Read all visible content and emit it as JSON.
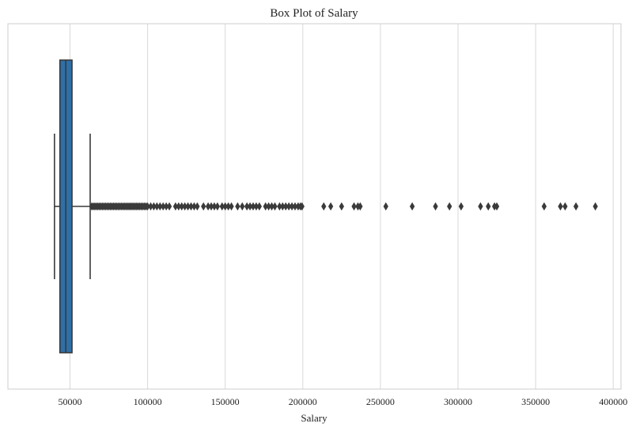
{
  "chart_data": {
    "type": "box",
    "orientation": "horizontal",
    "title": "Box Plot of Salary",
    "xlabel": "Salary",
    "ylabel": "",
    "xlim": [
      10000,
      405000
    ],
    "xticks": [
      50000,
      100000,
      150000,
      200000,
      250000,
      300000,
      350000,
      400000
    ],
    "xtick_labels": [
      "50000",
      "100000",
      "150000",
      "200000",
      "250000",
      "300000",
      "350000",
      "400000"
    ],
    "grid": true,
    "box_color": "#2e6fa7",
    "line_color": "#3a3a3a",
    "stats": {
      "whisker_low": 40000,
      "q1": 43500,
      "median": 47300,
      "q3": 51300,
      "whisker_high": 63000
    },
    "outliers": [
      64000,
      65000,
      66000,
      67000,
      68000,
      69000,
      70000,
      71000,
      72000,
      73000,
      74000,
      75000,
      76000,
      77000,
      78000,
      79000,
      80000,
      81000,
      82000,
      83000,
      84000,
      85000,
      86000,
      87000,
      88000,
      89000,
      90000,
      91000,
      92000,
      93000,
      94000,
      95000,
      96000,
      97000,
      98000,
      99000,
      100000,
      102000,
      104000,
      106000,
      108000,
      110000,
      112000,
      114000,
      118000,
      120000,
      122000,
      124000,
      126000,
      128000,
      130000,
      132000,
      136000,
      139000,
      141000,
      143000,
      145000,
      148000,
      150000,
      152000,
      154000,
      158000,
      161000,
      164000,
      166000,
      168000,
      170000,
      172000,
      176000,
      178000,
      180000,
      182000,
      185000,
      187000,
      189000,
      191000,
      193000,
      195000,
      197000,
      198500,
      199500,
      213500,
      218000,
      225000,
      233000,
      235500,
      237000,
      253500,
      270500,
      285500,
      294500,
      302000,
      314500,
      319500,
      323500,
      325000,
      355500,
      366000,
      369000,
      376000,
      388500
    ]
  }
}
